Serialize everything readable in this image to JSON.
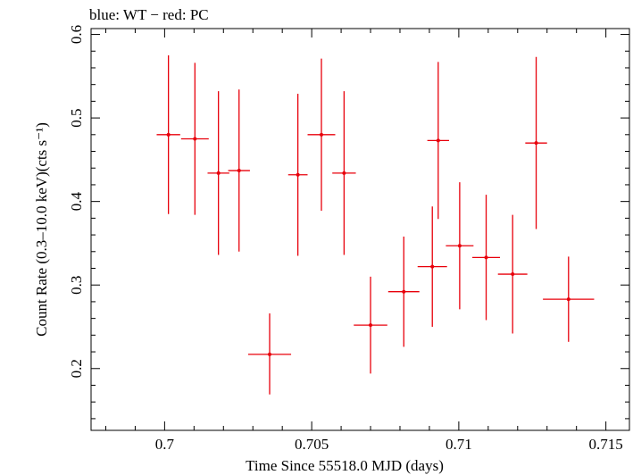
{
  "chart_data": {
    "type": "scatter",
    "title": "blue: WT − red: PC",
    "xlabel": "Time Since 55518.0 MJD (days)",
    "ylabel": "Count Rate (0.3–10.0 keV)(cts s⁻¹)",
    "xlim": [
      0.6975,
      0.7158
    ],
    "ylim": [
      0.126,
      0.607
    ],
    "xticks": [
      0.7,
      0.705,
      0.71,
      0.715
    ],
    "xtick_labels": [
      "0.7",
      "0.705",
      "0.71",
      "0.715"
    ],
    "yticks": [
      0.2,
      0.3,
      0.4,
      0.5,
      0.6
    ],
    "ytick_labels": [
      "0.2",
      "0.3",
      "0.4",
      "0.5",
      "0.6"
    ],
    "grid": false,
    "series": [
      {
        "color": "#e8000b",
        "points": [
          {
            "x": 0.7093,
            "xerr": 0.00037,
            "y": 0.473,
            "yerr_lo": 0.094,
            "yerr_hi": 0.094
          },
          {
            "x": 0.70013,
            "xerr": 0.0004,
            "y": 0.48,
            "yerr_lo": 0.095,
            "yerr_hi": 0.095
          },
          {
            "x": 0.70103,
            "xerr": 0.00047,
            "y": 0.475,
            "yerr_lo": 0.091,
            "yerr_hi": 0.091
          },
          {
            "x": 0.70183,
            "xerr": 0.00037,
            "y": 0.434,
            "yerr_lo": 0.098,
            "yerr_hi": 0.098
          },
          {
            "x": 0.70253,
            "xerr": 0.00037,
            "y": 0.437,
            "yerr_lo": 0.097,
            "yerr_hi": 0.097
          },
          {
            "x": 0.70357,
            "xerr": 0.00073,
            "y": 0.217,
            "yerr_lo": 0.048,
            "yerr_hi": 0.049
          },
          {
            "x": 0.70453,
            "xerr": 0.00033,
            "y": 0.432,
            "yerr_lo": 0.097,
            "yerr_hi": 0.097
          },
          {
            "x": 0.70533,
            "xerr": 0.00047,
            "y": 0.48,
            "yerr_lo": 0.091,
            "yerr_hi": 0.091
          },
          {
            "x": 0.7061,
            "xerr": 0.0004,
            "y": 0.434,
            "yerr_lo": 0.098,
            "yerr_hi": 0.098
          },
          {
            "x": 0.707,
            "xerr": 0.00057,
            "y": 0.252,
            "yerr_lo": 0.058,
            "yerr_hi": 0.058
          },
          {
            "x": 0.70813,
            "xerr": 0.00053,
            "y": 0.292,
            "yerr_lo": 0.066,
            "yerr_hi": 0.066
          },
          {
            "x": 0.7091,
            "xerr": 0.0005,
            "y": 0.322,
            "yerr_lo": 0.072,
            "yerr_hi": 0.072
          },
          {
            "x": 0.71003,
            "xerr": 0.00047,
            "y": 0.347,
            "yerr_lo": 0.076,
            "yerr_hi": 0.076
          },
          {
            "x": 0.71093,
            "xerr": 0.00047,
            "y": 0.333,
            "yerr_lo": 0.075,
            "yerr_hi": 0.075
          },
          {
            "x": 0.71183,
            "xerr": 0.0005,
            "y": 0.313,
            "yerr_lo": 0.071,
            "yerr_hi": 0.071
          },
          {
            "x": 0.71263,
            "xerr": 0.00037,
            "y": 0.47,
            "yerr_lo": 0.103,
            "yerr_hi": 0.103
          },
          {
            "x": 0.71373,
            "xerr": 0.00087,
            "y": 0.283,
            "yerr_lo": 0.051,
            "yerr_hi": 0.051
          }
        ]
      }
    ]
  }
}
